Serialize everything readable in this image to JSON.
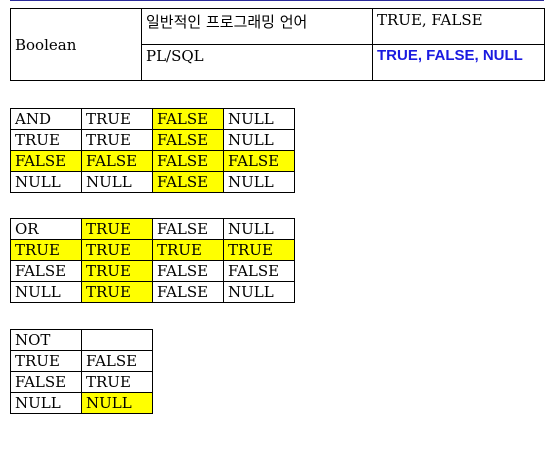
{
  "boolean_table": {
    "type": "Boolean",
    "rows": [
      {
        "context": "일반적인 프로그래밍 언어",
        "values": "TRUE, FALSE"
      },
      {
        "context": "PL/SQL",
        "values": "TRUE, FALSE, NULL"
      }
    ]
  },
  "and_table": {
    "rows": [
      [
        "AND",
        "TRUE",
        "FALSE",
        "NULL"
      ],
      [
        "TRUE",
        "TRUE",
        "FALSE",
        "NULL"
      ],
      [
        "FALSE",
        "FALSE",
        "FALSE",
        "FALSE"
      ],
      [
        "NULL",
        "NULL",
        "FALSE",
        "NULL"
      ]
    ]
  },
  "or_table": {
    "rows": [
      [
        "OR",
        "TRUE",
        "FALSE",
        "NULL"
      ],
      [
        "TRUE",
        "TRUE",
        "TRUE",
        "TRUE"
      ],
      [
        "FALSE",
        "TRUE",
        "FALSE",
        "FALSE"
      ],
      [
        "NULL",
        "TRUE",
        "FALSE",
        "NULL"
      ]
    ]
  },
  "not_table": {
    "rows": [
      [
        "NOT",
        ""
      ],
      [
        "TRUE",
        "FALSE"
      ],
      [
        "FALSE",
        "TRUE"
      ],
      [
        "NULL",
        "NULL"
      ]
    ]
  },
  "colors": {
    "highlight": "#ffff00",
    "plsql_values": "#1a1ae0"
  }
}
